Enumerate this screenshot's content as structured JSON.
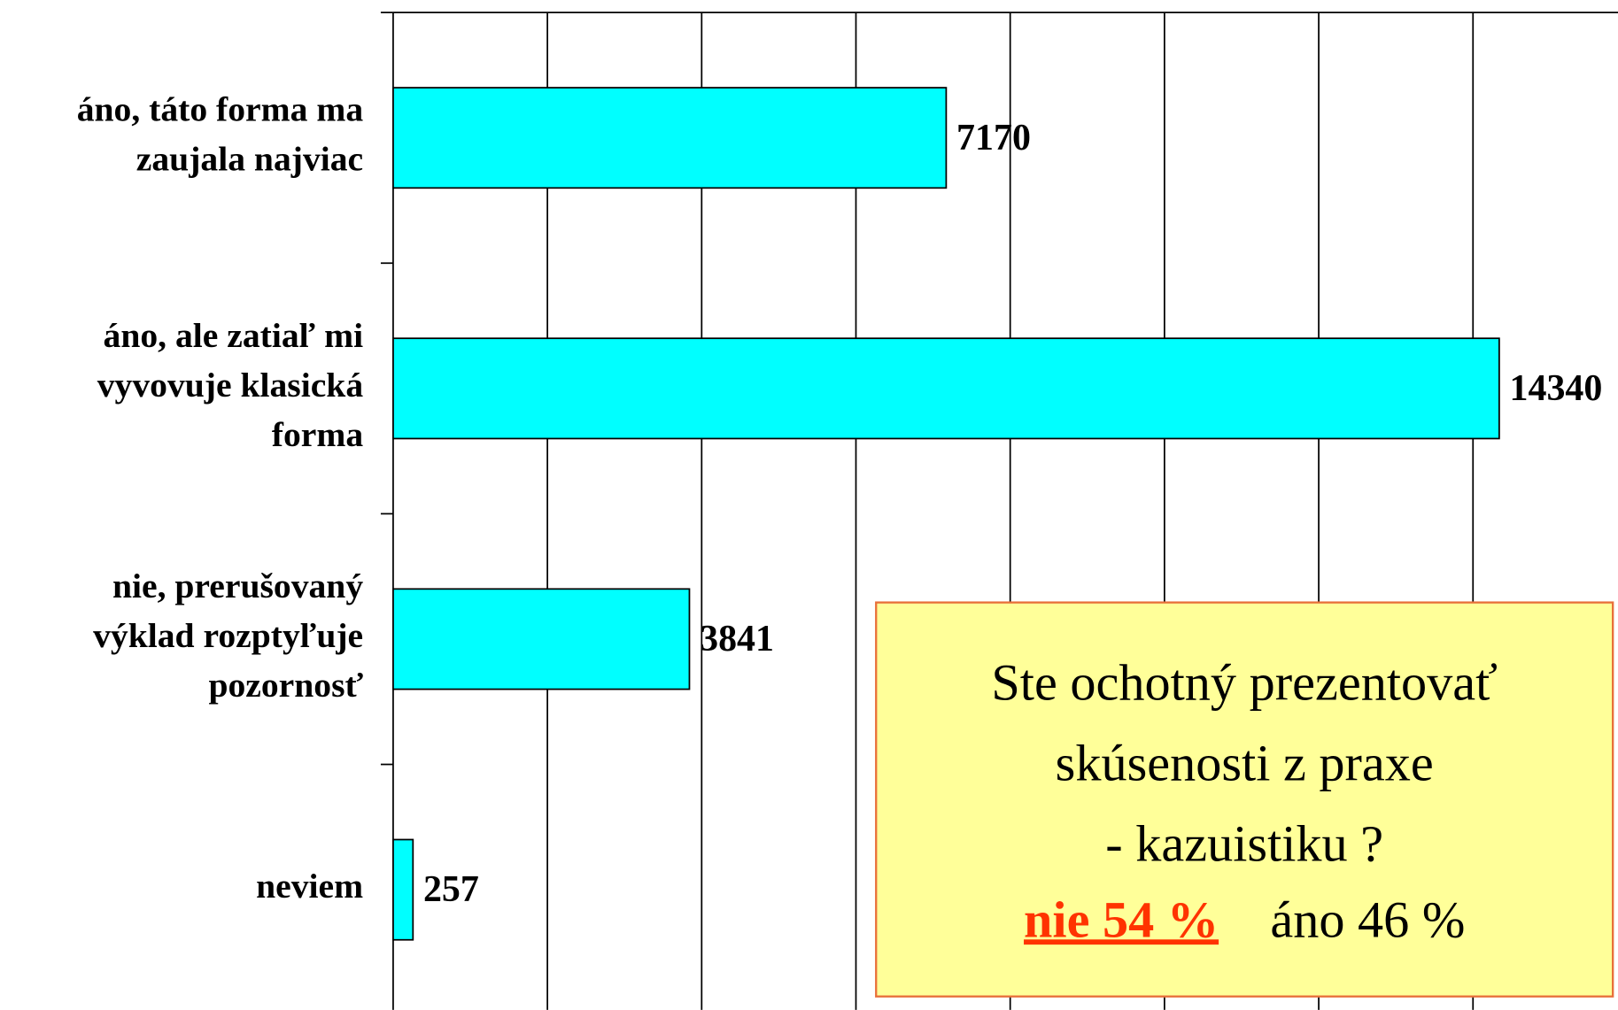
{
  "chart_data": {
    "type": "bar",
    "orientation": "horizontal",
    "categories": [
      "áno, táto forma ma\nzaujala najviac",
      "áno, ale zatiaľ mi\nvyvovuje klasická\nforma",
      "nie, prerušovaný\nvýklad rozptyľuje\npozornosť",
      "neviem"
    ],
    "values": [
      7170,
      14340,
      3841,
      257
    ],
    "color": "#00ffff",
    "xlim": [
      0,
      15880
    ],
    "xticks": [
      0,
      2000,
      4000,
      6000,
      8000,
      10000,
      12000,
      14000
    ],
    "grid": true,
    "annotation": {
      "lines": [
        "Ste ochotný prezentovať",
        "skúsenosti z praxe",
        "- kazuistiku ?"
      ],
      "highlight": "nie 54 %",
      "rest": "áno 46 %"
    }
  }
}
